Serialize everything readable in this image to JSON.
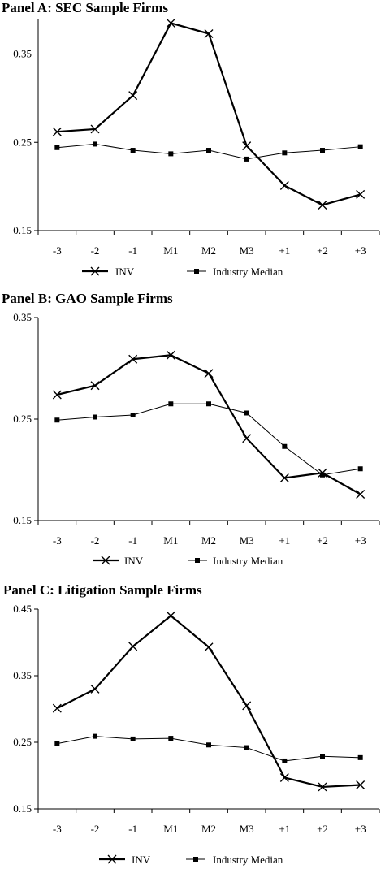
{
  "chart_data": [
    {
      "type": "line",
      "title": "Panel A: SEC Sample Firms",
      "categories": [
        "-3",
        "-2",
        "-1",
        "M1",
        "M2",
        "M3",
        "+1",
        "+2",
        "+3"
      ],
      "ylim": [
        0.15,
        0.39
      ],
      "yticks": [
        "0.15",
        "0.25",
        "0.35"
      ],
      "grid": false,
      "legend": "bottom",
      "series": [
        {
          "name": "INV",
          "marker": "x",
          "values": [
            0.262,
            0.265,
            0.303,
            0.385,
            0.373,
            0.246,
            0.201,
            0.179,
            0.191
          ]
        },
        {
          "name": "Industry Median",
          "marker": "square",
          "values": [
            0.244,
            0.248,
            0.241,
            0.237,
            0.241,
            0.231,
            0.238,
            0.241,
            0.245
          ]
        }
      ]
    },
    {
      "type": "line",
      "title": "Panel B: GAO Sample Firms",
      "categories": [
        "-3",
        "-2",
        "-1",
        "M1",
        "M2",
        "M3",
        "+1",
        "+2",
        "+3"
      ],
      "ylim": [
        0.15,
        0.35
      ],
      "yticks": [
        "0.15",
        "0.25",
        "0.35"
      ],
      "grid": false,
      "legend": "bottom",
      "series": [
        {
          "name": "INV",
          "marker": "x",
          "values": [
            0.274,
            0.283,
            0.309,
            0.313,
            0.295,
            0.231,
            0.192,
            0.197,
            0.176
          ]
        },
        {
          "name": "Industry Median",
          "marker": "square",
          "values": [
            0.249,
            0.252,
            0.254,
            0.265,
            0.265,
            0.256,
            0.223,
            0.195,
            0.201
          ]
        }
      ]
    },
    {
      "type": "line",
      "title": "Panel C: Litigation Sample Firms",
      "categories": [
        "-3",
        "-2",
        "-1",
        "M1",
        "M2",
        "M3",
        "+1",
        "+2",
        "+3"
      ],
      "ylim": [
        0.15,
        0.45
      ],
      "yticks": [
        "0.15",
        "0.25",
        "0.35",
        "0.45"
      ],
      "grid": false,
      "legend": "bottom",
      "series": [
        {
          "name": "INV",
          "marker": "x",
          "values": [
            0.301,
            0.33,
            0.394,
            0.44,
            0.393,
            0.305,
            0.197,
            0.183,
            0.186
          ]
        },
        {
          "name": "Industry Median",
          "marker": "square",
          "values": [
            0.248,
            0.259,
            0.255,
            0.256,
            0.246,
            0.242,
            0.222,
            0.229,
            0.227
          ]
        }
      ]
    }
  ]
}
